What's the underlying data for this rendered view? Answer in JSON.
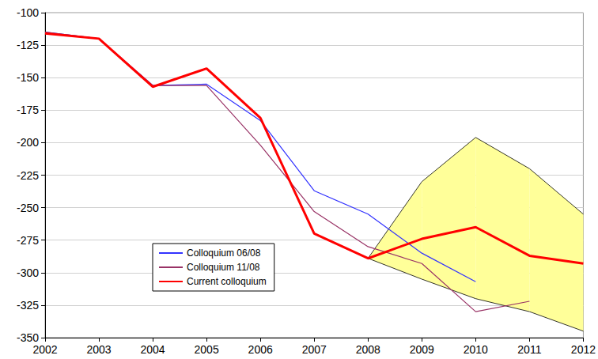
{
  "chart_data": {
    "type": "line",
    "categories": [
      "2002",
      "2003",
      "2004",
      "2005",
      "2006",
      "2007",
      "2008",
      "2009",
      "2010",
      "2011",
      "2012"
    ],
    "series": [
      {
        "name": "Colloquium 06/08",
        "color": "#3333ff",
        "line_style": "thin",
        "values": [
          -115,
          -120,
          -156,
          -155,
          -183,
          -237,
          -255,
          -285,
          -307,
          null,
          null
        ]
      },
      {
        "name": "Colloquium 11/08",
        "color": "#993366",
        "line_style": "thin",
        "values": [
          -115,
          -120,
          -156,
          -156,
          -202,
          -253,
          -280,
          -293,
          -330,
          -322,
          null
        ]
      },
      {
        "name": "Current colloquium",
        "color": "#ff0000",
        "line_style": "thick",
        "values": [
          -116,
          -120,
          -157,
          -143,
          -181,
          -270,
          -289,
          -274,
          -265,
          -287,
          -293
        ]
      }
    ],
    "band": {
      "color": "#ffff99",
      "lower": [
        null,
        null,
        null,
        null,
        null,
        null,
        -289,
        -305,
        -320,
        -330,
        -345
      ],
      "upper": [
        null,
        null,
        null,
        null,
        null,
        null,
        -289,
        -230,
        -196,
        -220,
        -255
      ]
    },
    "marker": "none",
    "ylim": [
      -350,
      -100
    ],
    "yticks": [
      -350,
      -325,
      -300,
      -275,
      -250,
      -225,
      -200,
      -175,
      -150,
      -125,
      -100
    ],
    "grid": true,
    "legend": "lower left"
  }
}
